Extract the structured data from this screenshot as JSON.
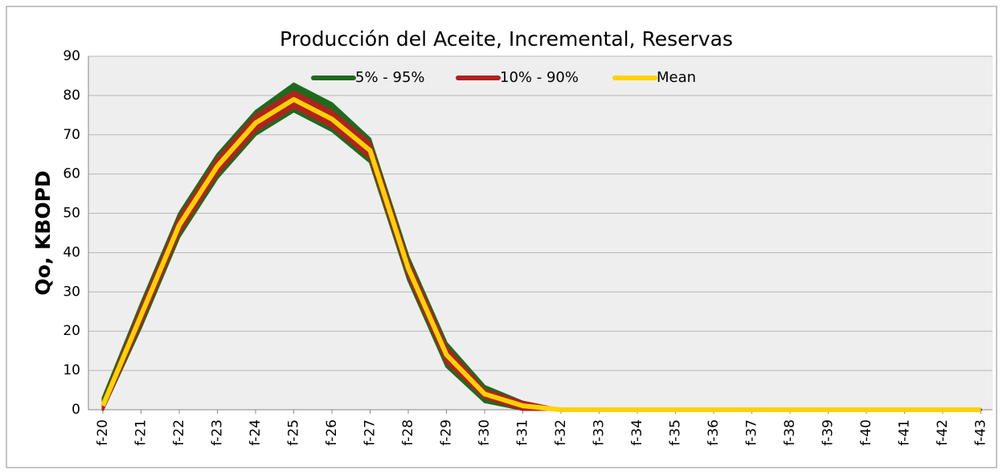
{
  "chart_data": {
    "type": "band-line",
    "title": "Producción del Aceite, Incremental, Reservas",
    "y_label": "Qo, KBOPD",
    "categories": [
      "f-20",
      "f-21",
      "f-22",
      "f-23",
      "f-24",
      "f-25",
      "f-26",
      "f-27",
      "f-28",
      "f-29",
      "f-30",
      "f-31",
      "f-32",
      "f-33",
      "f-34",
      "f-35",
      "f-36",
      "f-37",
      "f-38",
      "f-39",
      "f-40",
      "f-41",
      "f-42",
      "f-43"
    ],
    "ylim": [
      0,
      90
    ],
    "yticks": [
      0,
      10,
      20,
      30,
      40,
      50,
      60,
      70,
      80,
      90
    ],
    "grid": true,
    "series": [
      {
        "name": "5% - 95%",
        "color": "#1e6b1e",
        "low": [
          0,
          21,
          44,
          59,
          70,
          76,
          71,
          63,
          33,
          11,
          2,
          0,
          0,
          0,
          0,
          0,
          0,
          0,
          0,
          0,
          0,
          0,
          0,
          0
        ],
        "high": [
          3,
          27,
          50,
          65,
          76,
          83,
          78,
          69,
          39,
          17,
          6,
          2,
          0,
          0,
          0,
          0,
          0,
          0,
          0,
          0,
          0,
          0,
          0,
          0
        ]
      },
      {
        "name": "10% - 90%",
        "color": "#b0221e",
        "low": [
          0,
          22,
          45,
          60,
          71,
          77,
          72,
          64,
          34,
          12,
          3,
          0,
          0,
          0,
          0,
          0,
          0,
          0,
          0,
          0,
          0,
          0,
          0,
          0
        ],
        "high": [
          2,
          26,
          49,
          64,
          75,
          81,
          76,
          68,
          38,
          16,
          5,
          2,
          0,
          0,
          0,
          0,
          0,
          0,
          0,
          0,
          0,
          0,
          0,
          0
        ]
      },
      {
        "name": "Mean",
        "color": "#ffd200",
        "values": [
          1,
          24,
          47,
          62,
          73,
          79,
          74,
          66,
          36,
          14,
          4,
          1,
          0,
          0,
          0,
          0,
          0,
          0,
          0,
          0,
          0,
          0,
          0,
          0
        ]
      }
    ]
  }
}
